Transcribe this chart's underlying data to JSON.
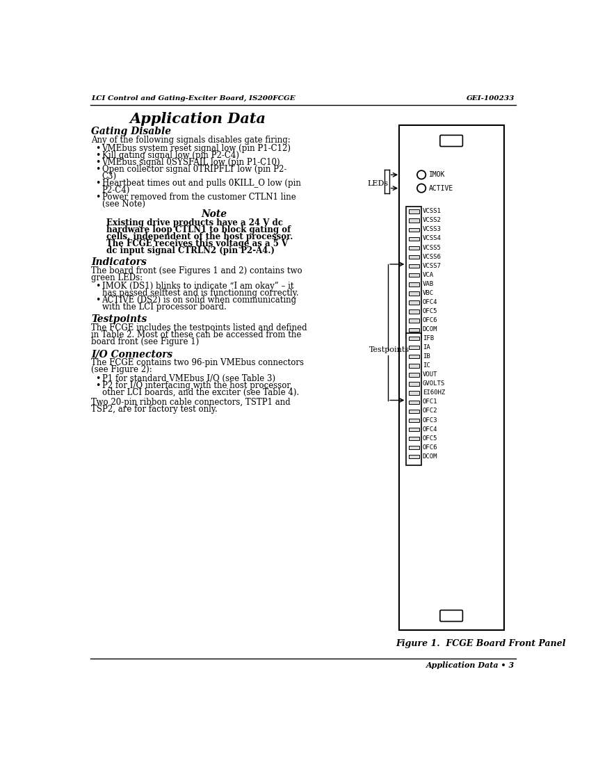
{
  "header_left": "LCI Control and Gating-Exciter Board, IS200FCGE",
  "header_right": "GEI-100233",
  "title": "Application Data",
  "section1_title": "Gating Disable",
  "section1_intro": "Any of the following signals disables gate firing:",
  "bullets1": [
    "VMEbus system reset signal low (pin P1-C12)",
    "Kill gating signal low (pin P2-C4)",
    "VMEbus signal 0SYSFAIL low (pin P1-C10)",
    "Open collector signal 0TRIPFLT low (pin P2-\nC3)",
    "Heartbeat times out and pulls 0KILL_O low (pin\nP2-C4)",
    "Power removed from the customer CTLN1 line\n(see Note)"
  ],
  "note_title": "Note",
  "note_body": "Existing drive products have a 24 V dc\nhardware loop CTLN1 to block gating of\ncells, independent of the host processor.\nThe FCGE receives this voltage as a 5 V\ndc input signal CTRLN2 (pin P2-A4.)",
  "section2_title": "Indicators",
  "section2_intro": "The board front (see Figures 1 and 2) contains two\ngreen LEDs:",
  "bullets2": [
    "IMOK (DS1) blinks to indicate “I am okay” – it\nhas passed selftest and is functioning correctly.",
    "ACTIVE (DS2) is on solid when communicating\nwith the LCI processor board."
  ],
  "section3_title": "Testpoints",
  "section3_intro": "The FCGE includes the testpoints listed and defined\nin Table 2. Most of these can be accessed from the\nboard front (see Figure 1)",
  "section4_title": "I/O Connectors",
  "section4_intro": "The FCGE contains two 96-pin VMEbus connectors\n(see Figure 2):",
  "bullets4": [
    "P1 for standard VMEbus I/O (see Table 3)",
    "P2 for I/O interfacing with the host processor,\nother LCI boards, and the exciter (see Table 4)."
  ],
  "section4_outro": "Two 20-pin ribbon cable connectors, TSTP1 and\nTSP2, are for factory test only.",
  "leds_label": "LEDs",
  "testpoints_label": "Testpoints",
  "top_group_labels": [
    "VCSS1",
    "VCSS2",
    "VCSS3",
    "VCSS4",
    "VCSS5",
    "VCSS6",
    "VCSS7",
    "VCA",
    "VAB",
    "VBC",
    "OFC4",
    "OFC5",
    "OFC6",
    "DCOM"
  ],
  "bottom_group_labels": [
    "IFB",
    "IA",
    "IB",
    "IC",
    "VOUT",
    "GVOLTS",
    "EI60HZ",
    "OFC1",
    "OFC2",
    "OFC3",
    "OFC4",
    "OFC5",
    "OFC6",
    "DCOM"
  ],
  "figure_caption": "Figure 1.  FCGE Board Front Panel",
  "footer_text": "Application Data • 3",
  "bg_color": "#ffffff",
  "text_color": "#000000"
}
